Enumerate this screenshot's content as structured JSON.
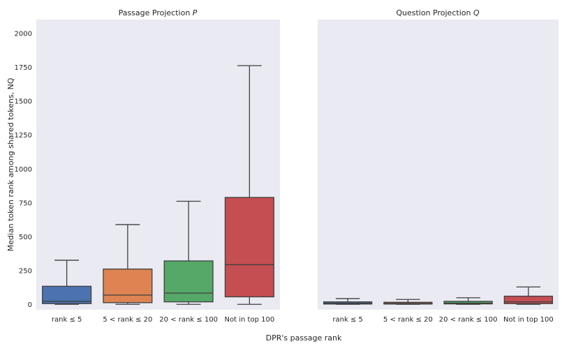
{
  "chart_data": [
    {
      "type": "box",
      "title_text": "Passage Projection ",
      "title_var": "P",
      "ylabel": "Median token rank among shared tokens, NQ",
      "ylim": [
        -40,
        2100
      ],
      "yticks": [
        0,
        250,
        500,
        750,
        1000,
        1250,
        1500,
        1750,
        2000
      ],
      "grid": false,
      "categories": [
        "rank ≤ 5",
        "5 < rank ≤ 20",
        "20 < rank ≤ 100",
        "Not in top 100"
      ],
      "boxes": [
        {
          "whislo": 0,
          "q1": 5,
          "med": 22,
          "q3": 133,
          "whishi": 325
        },
        {
          "whislo": 0,
          "q1": 12,
          "med": 68,
          "q3": 260,
          "whishi": 588
        },
        {
          "whislo": 0,
          "q1": 18,
          "med": 83,
          "q3": 320,
          "whishi": 760
        },
        {
          "whislo": 0,
          "q1": 55,
          "med": 292,
          "q3": 788,
          "whishi": 1760
        }
      ]
    },
    {
      "type": "box",
      "title_text": "Question Projection ",
      "title_var": "Q",
      "ylim": [
        -40,
        2100
      ],
      "grid": false,
      "categories": [
        "rank ≤ 5",
        "5 < rank ≤ 20",
        "20 < rank ≤ 100",
        "Not in top 100"
      ],
      "boxes": [
        {
          "whislo": 0,
          "q1": 2,
          "med": 8,
          "q3": 18,
          "whishi": 42
        },
        {
          "whislo": 0,
          "q1": 2,
          "med": 7,
          "q3": 15,
          "whishi": 36
        },
        {
          "whislo": 0,
          "q1": 3,
          "med": 9,
          "q3": 22,
          "whishi": 48
        },
        {
          "whislo": 0,
          "q1": 5,
          "med": 18,
          "q3": 60,
          "whishi": 128
        }
      ]
    }
  ],
  "xlabel": "DPR's passage rank",
  "colors": [
    "#4c72b0",
    "#dd8452",
    "#55a868",
    "#c44e52"
  ],
  "background": "#eaeaf2"
}
